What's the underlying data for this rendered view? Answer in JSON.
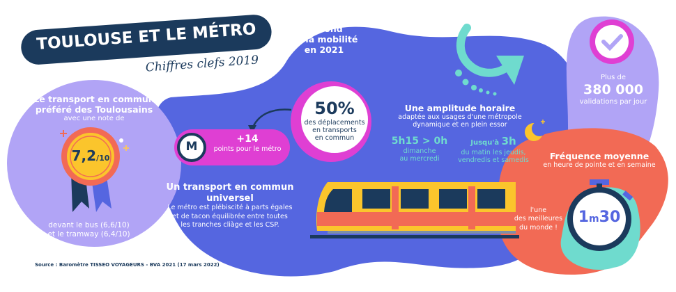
{
  "title": "TOULOUSE ET LE MÉTRO",
  "subtitle": "Chiffres clefs 2019",
  "colors": {
    "navy": "#1b3a5c",
    "blue": "#5566e0",
    "lavender": "#b1a4f6",
    "magenta": "#df3fd3",
    "coral": "#f26a55",
    "teal": "#6fdbce",
    "yellow": "#fbc52c"
  },
  "rating": {
    "heading1": "Le transport en commun",
    "heading2": "préféré des Toulousains",
    "intro": "avec une note de",
    "score": "7,2",
    "denominator": "/10",
    "note1": "devant le bus (6,6/10)",
    "note2": "et le tramway (6,4/10)",
    "icon": "medal-icon"
  },
  "rebound": {
    "line1": "Rebond",
    "line2": "de la mobilité",
    "line3": "en 2021",
    "percent": "50%",
    "desc1": "des déplacements",
    "desc2": "en transports",
    "desc3": "en commun"
  },
  "metro_points": {
    "value": "+14",
    "label": "points pour le métro",
    "icon": "metro-logo-icon",
    "letter": "M"
  },
  "universal": {
    "title1": "Un transport en commun",
    "title2": "universel",
    "line1": "Le métro est plébiscité à parts égales",
    "line2": "et de tacon équilibrée entre toutes",
    "line3": "les tranches cliàge et les CSP."
  },
  "hours": {
    "title": "Une amplitude horaire",
    "sub1": "adaptée aux usages d'une métropole",
    "sub2": "dynamique et en plein essor",
    "range1": "5h15 > 0h",
    "range1_d1": "dimanche",
    "range1_d2": "au mercredi",
    "range2_pre": "Jusqu'à ",
    "range2": "3h",
    "range2_d1": "du matin les jeudis,",
    "range2_d2": "vendredis et samedis"
  },
  "validations": {
    "pre": "Plus de",
    "value": "380 000",
    "label": "validations par jour",
    "icon": "check-icon"
  },
  "frequency": {
    "title": "Fréquence moyenne",
    "sub": "en heure de pointe et en semaine",
    "note1": "l'une",
    "note2": "des meilleures",
    "note3": "du monde !",
    "value_min": "1",
    "unit": "m",
    "value_sec": "30",
    "icon": "stopwatch-icon"
  },
  "source": "Source : Baromètre TISSEO VOYAGEURS - BVA 2021 (17 mars 2022)"
}
